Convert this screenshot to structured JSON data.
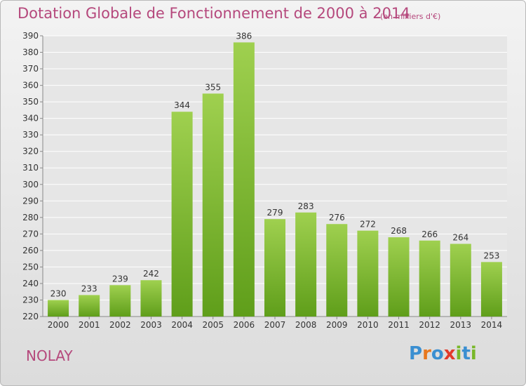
{
  "title": "Dotation Globale de Fonctionnement de 2000 à 2014",
  "unit_note": "(en milliers d'€)",
  "commune": "NOLAY",
  "logo": {
    "letters": [
      {
        "char": "P",
        "color": "#3a8fd1"
      },
      {
        "char": "r",
        "color": "#e8781e"
      },
      {
        "char": "o",
        "color": "#3a8fd1"
      },
      {
        "char": "x",
        "color": "#e23a2a"
      },
      {
        "char": "i",
        "color": "#79b829"
      },
      {
        "char": "t",
        "color": "#3a8fd1"
      },
      {
        "char": "i",
        "color": "#79b829"
      }
    ]
  },
  "colors": {
    "accent_text": "#b5487c",
    "bar_top": "#9fd04f",
    "bar_bottom": "#5f9e1a"
  },
  "chart_data": {
    "type": "bar",
    "categories": [
      "2000",
      "2001",
      "2002",
      "2003",
      "2004",
      "2005",
      "2006",
      "2007",
      "2008",
      "2009",
      "2010",
      "2011",
      "2012",
      "2013",
      "2014"
    ],
    "values": [
      230,
      233,
      239,
      242,
      344,
      355,
      386,
      279,
      283,
      276,
      272,
      268,
      266,
      264,
      253
    ],
    "ylim": [
      220,
      390
    ],
    "yticks": [
      220,
      230,
      240,
      250,
      260,
      270,
      280,
      290,
      300,
      310,
      320,
      330,
      340,
      350,
      360,
      370,
      380,
      390
    ],
    "grid": true,
    "data_labels": true,
    "xlabel": "",
    "ylabel": ""
  }
}
